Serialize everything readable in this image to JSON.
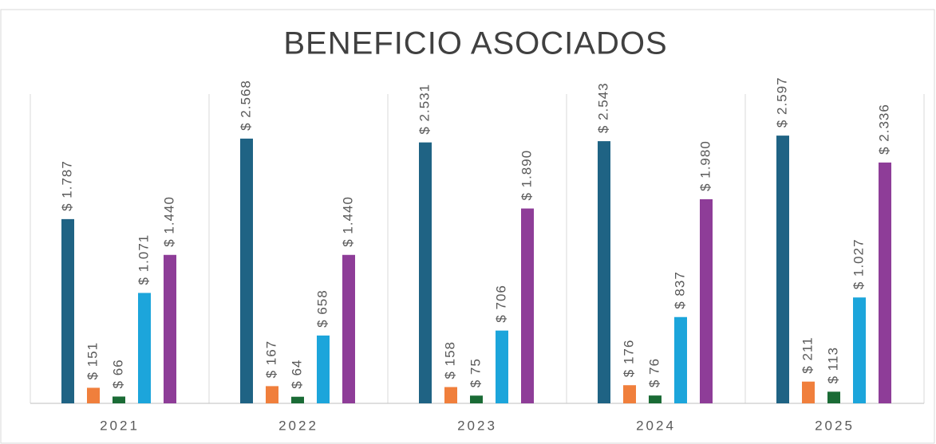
{
  "chart_data": {
    "type": "bar",
    "title": "BENEFICIO ASOCIADOS",
    "categories": [
      "2021",
      "2022",
      "2023",
      "2024",
      "2025"
    ],
    "series": [
      {
        "color": "#1f6384",
        "values": [
          1787,
          2568,
          2531,
          2543,
          2597
        ],
        "value_labels": [
          "$ 1.787",
          "$ 2.568",
          "$ 2.531",
          "$ 2.543",
          "$ 2.597"
        ]
      },
      {
        "color": "#f07f3c",
        "values": [
          151,
          167,
          158,
          176,
          211
        ],
        "value_labels": [
          "$ 151",
          "$ 167",
          "$ 158",
          "$ 176",
          "$ 211"
        ]
      },
      {
        "color": "#1a6b35",
        "values": [
          66,
          64,
          75,
          76,
          113
        ],
        "value_labels": [
          "$ 66",
          "$ 64",
          "$ 75",
          "$ 76",
          "$ 113"
        ]
      },
      {
        "color": "#1ca5db",
        "values": [
          1071,
          658,
          706,
          837,
          1027
        ],
        "value_labels": [
          "$ 1.071",
          "$ 658",
          "$ 706",
          "$ 837",
          "$ 1.027"
        ]
      },
      {
        "color": "#8e3d98",
        "values": [
          1440,
          1440,
          1890,
          1980,
          2336
        ],
        "value_labels": [
          "$ 1.440",
          "$ 1.440",
          "$ 1.890",
          "$ 1.980",
          "$ 2.336"
        ]
      }
    ],
    "ylim": [
      0,
      3000
    ]
  }
}
